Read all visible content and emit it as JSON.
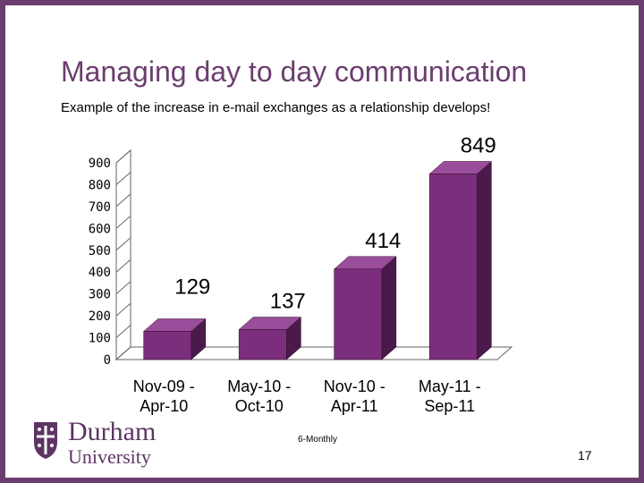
{
  "slide": {
    "title": "Managing day to day communication",
    "subtitle": "Example of the increase in e-mail exchanges as a relationship develops!",
    "page_number": "17"
  },
  "logo": {
    "name": "Durham",
    "sub": "University",
    "icon": "durham-crest-icon",
    "color": "#5e3463"
  },
  "chart_data": {
    "type": "bar",
    "style": "3d",
    "categories": [
      [
        "Nov-09 -",
        "Apr-10"
      ],
      [
        "May-10 -",
        "Oct-10"
      ],
      [
        "Nov-10 -",
        "Apr-11"
      ],
      [
        "May-11 -",
        "Sep-11"
      ]
    ],
    "values": [
      129,
      137,
      414,
      849
    ],
    "data_labels": [
      "129",
      "137",
      "414",
      "849"
    ],
    "xlabel": "6-Monthly",
    "ylabel": "",
    "ylim": [
      0,
      900
    ],
    "yticks": [
      0,
      100,
      200,
      300,
      400,
      500,
      600,
      700,
      800,
      900
    ],
    "grid": false,
    "legend": "none",
    "colors": {
      "bar_front": "#7b2e7b",
      "bar_top": "#9a4d9a",
      "bar_side": "#4a1a4a",
      "axis": "#666666"
    }
  }
}
